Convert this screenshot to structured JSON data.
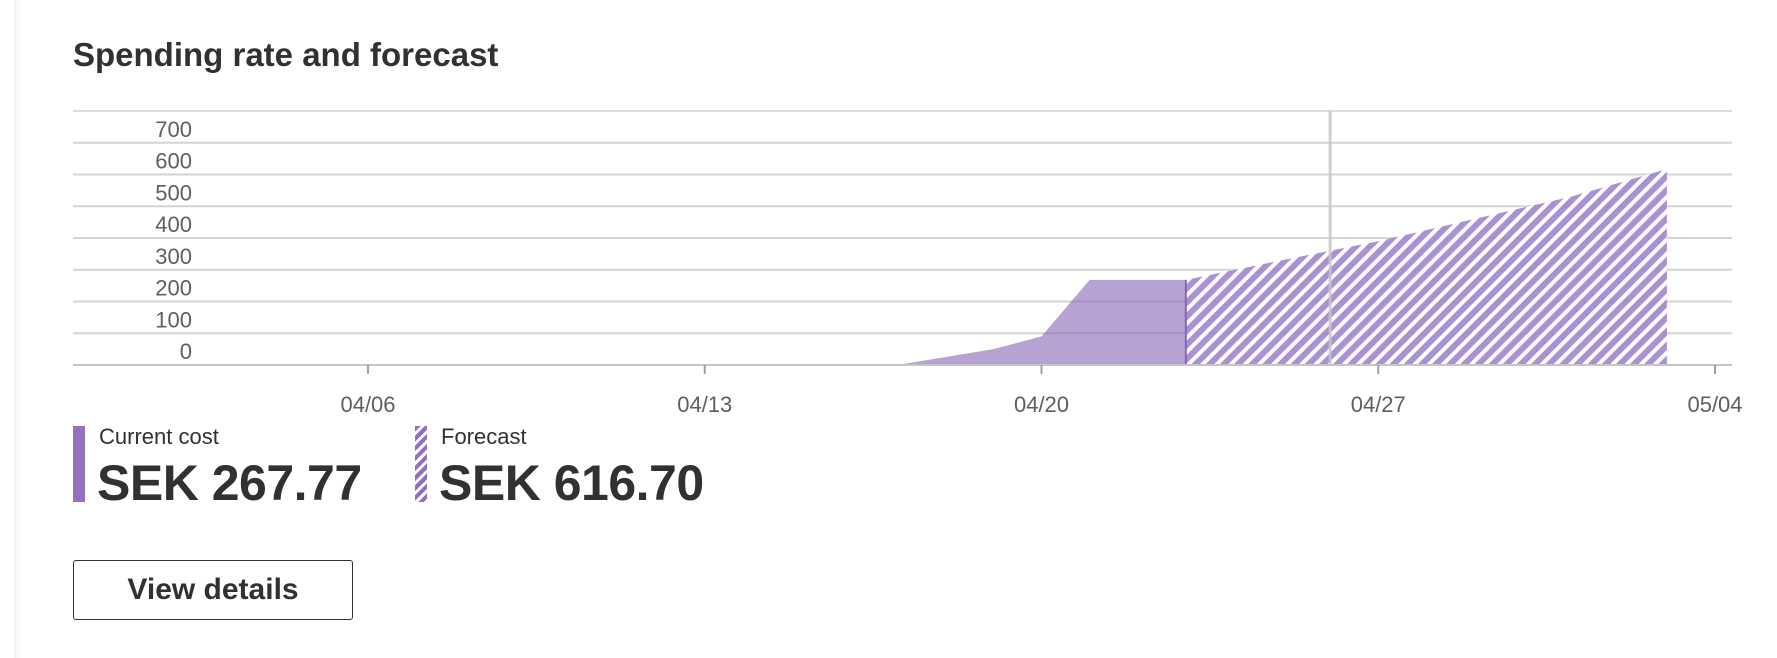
{
  "card": {
    "title": "Spending rate and forecast",
    "view_details_label": "View details"
  },
  "legend": {
    "current": {
      "label": "Current cost",
      "value": "SEK 267.77",
      "color": "#8764b8"
    },
    "forecast": {
      "label": "Forecast",
      "value": "SEK 616.70",
      "color": "#8f6fc4",
      "icon": "hatch-swatch"
    }
  },
  "chart_data": {
    "type": "area",
    "title": "",
    "xlabel": "",
    "ylabel": "",
    "x_tick_labels": [
      "04/06",
      "04/13",
      "04/20",
      "04/27",
      "05/04"
    ],
    "x_tick_dates": [
      "2024-04-06",
      "2024-04-13",
      "2024-04-20",
      "2024-04-27",
      "2024-05-04"
    ],
    "y_ticks": [
      0,
      100,
      200,
      300,
      400,
      500,
      600,
      700
    ],
    "ylim": [
      0,
      800
    ],
    "grid": true,
    "today_marker": "2024-04-26",
    "series": [
      {
        "style": "solid",
        "color": "#8764b8",
        "x": [
          "2024-04-17",
          "2024-04-19",
          "2024-04-20",
          "2024-04-21",
          "2024-04-23"
        ],
        "y": [
          0,
          50,
          90,
          268,
          268
        ]
      },
      {
        "style": "hatched",
        "color": "#8f6fc4",
        "x": [
          "2024-04-23",
          "2024-04-25",
          "2024-04-27",
          "2024-04-29",
          "2024-05-01",
          "2024-05-03"
        ],
        "y": [
          268,
          330,
          390,
          460,
          530,
          617
        ]
      }
    ]
  }
}
